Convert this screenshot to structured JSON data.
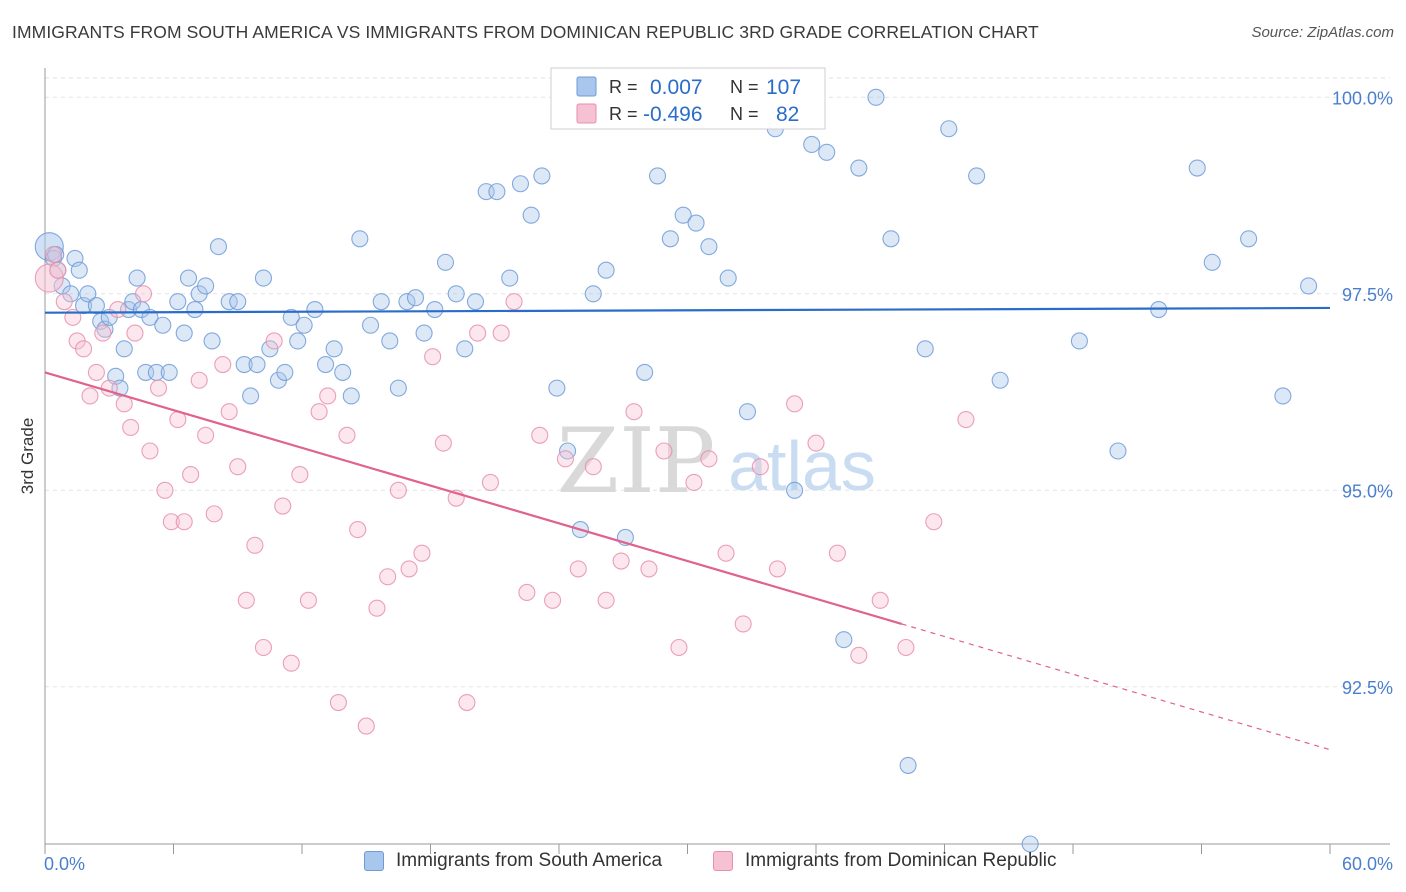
{
  "header": {
    "title": "IMMIGRANTS FROM SOUTH AMERICA VS IMMIGRANTS FROM DOMINICAN REPUBLIC 3RD GRADE CORRELATION CHART",
    "source": "Source: ZipAtlas.com"
  },
  "watermark": {
    "zip": "ZIP",
    "atlas": "atlas"
  },
  "legend_stats": {
    "row1": {
      "r_label": "R =",
      "r_value": "0.007",
      "n_label": "N =",
      "n_value": "107"
    },
    "row2": {
      "r_label": "R =",
      "r_value": "-0.496",
      "n_label": "N =",
      "n_value": "82"
    }
  },
  "legend_bottom": {
    "item1": "Immigrants from South America",
    "item2": "Immigrants from Dominican Republic"
  },
  "colors": {
    "blue_fill": "#a9c6ec",
    "blue_stroke": "#6f9bd8",
    "blue_line": "#2a6dc8",
    "pink_fill": "#f6c2d3",
    "pink_stroke": "#e88fac",
    "pink_line": "#e0628e",
    "axis_label": "#4a7fcf",
    "grid": "#e2e2e2"
  },
  "chart_data": {
    "type": "scatter",
    "title": "IMMIGRANTS FROM SOUTH AMERICA VS IMMIGRANTS FROM DOMINICAN REPUBLIC 3RD GRADE CORRELATION CHART",
    "xlabel": "",
    "ylabel": "3rd Grade",
    "xlim": [
      0,
      60
    ],
    "ylim": [
      90.5,
      100.5
    ],
    "x_tick_labels": [
      "0.0%",
      "60.0%"
    ],
    "y_ticks": [
      92.5,
      95.0,
      97.5,
      100.0
    ],
    "y_tick_labels": [
      "92.5%",
      "95.0%",
      "97.5%",
      "100.0%"
    ],
    "grid": true,
    "legend_position": "top-center",
    "series": [
      {
        "name": "Immigrants from South America",
        "color": "#6f9bd8",
        "R": 0.007,
        "N": 107,
        "trend": {
          "x": [
            0,
            60
          ],
          "y": [
            97.26,
            97.32
          ]
        },
        "points": [
          [
            0.2,
            98.1
          ],
          [
            0.4,
            97.95
          ],
          [
            0.6,
            97.8
          ],
          [
            0.8,
            97.6
          ],
          [
            1.2,
            97.5
          ],
          [
            0.5,
            98.0
          ],
          [
            1.4,
            97.95
          ],
          [
            1.6,
            97.8
          ],
          [
            1.8,
            97.35
          ],
          [
            2.0,
            97.5
          ],
          [
            2.4,
            97.35
          ],
          [
            2.6,
            97.15
          ],
          [
            2.8,
            97.05
          ],
          [
            3.0,
            97.2
          ],
          [
            3.3,
            96.45
          ],
          [
            3.5,
            96.3
          ],
          [
            3.7,
            96.8
          ],
          [
            3.9,
            97.3
          ],
          [
            4.1,
            97.4
          ],
          [
            4.3,
            97.7
          ],
          [
            4.5,
            97.3
          ],
          [
            4.7,
            96.5
          ],
          [
            4.9,
            97.2
          ],
          [
            5.2,
            96.5
          ],
          [
            5.5,
            97.1
          ],
          [
            5.8,
            96.5
          ],
          [
            6.2,
            97.4
          ],
          [
            6.5,
            97.0
          ],
          [
            6.7,
            97.7
          ],
          [
            7.0,
            97.3
          ],
          [
            7.2,
            97.5
          ],
          [
            7.5,
            97.6
          ],
          [
            7.8,
            96.9
          ],
          [
            8.1,
            98.1
          ],
          [
            8.6,
            97.4
          ],
          [
            9.0,
            97.4
          ],
          [
            9.3,
            96.6
          ],
          [
            9.6,
            96.2
          ],
          [
            9.9,
            96.6
          ],
          [
            10.2,
            97.7
          ],
          [
            10.5,
            96.8
          ],
          [
            10.9,
            96.4
          ],
          [
            11.2,
            96.5
          ],
          [
            11.5,
            97.2
          ],
          [
            11.8,
            96.9
          ],
          [
            12.1,
            97.1
          ],
          [
            12.6,
            97.3
          ],
          [
            13.1,
            96.6
          ],
          [
            13.5,
            96.8
          ],
          [
            13.9,
            96.5
          ],
          [
            14.3,
            96.2
          ],
          [
            14.7,
            98.2
          ],
          [
            15.2,
            97.1
          ],
          [
            15.7,
            97.4
          ],
          [
            16.1,
            96.9
          ],
          [
            16.5,
            96.3
          ],
          [
            16.9,
            97.4
          ],
          [
            17.3,
            97.45
          ],
          [
            17.7,
            97.0
          ],
          [
            18.2,
            97.3
          ],
          [
            18.7,
            97.9
          ],
          [
            19.2,
            97.5
          ],
          [
            19.6,
            96.8
          ],
          [
            20.1,
            97.4
          ],
          [
            20.6,
            98.8
          ],
          [
            21.1,
            98.8
          ],
          [
            21.7,
            97.7
          ],
          [
            22.2,
            98.9
          ],
          [
            22.7,
            98.5
          ],
          [
            23.2,
            99.0
          ],
          [
            23.9,
            96.3
          ],
          [
            24.4,
            95.5
          ],
          [
            25.0,
            94.5
          ],
          [
            25.6,
            97.5
          ],
          [
            26.2,
            97.8
          ],
          [
            27.1,
            94.4
          ],
          [
            28.0,
            96.5
          ],
          [
            28.6,
            99.0
          ],
          [
            29.2,
            98.2
          ],
          [
            29.8,
            98.5
          ],
          [
            30.4,
            98.4
          ],
          [
            31.0,
            98.1
          ],
          [
            31.9,
            97.7
          ],
          [
            32.8,
            96.0
          ],
          [
            33.5,
            99.8
          ],
          [
            34.1,
            99.6
          ],
          [
            35.0,
            95.0
          ],
          [
            35.8,
            99.4
          ],
          [
            36.5,
            99.3
          ],
          [
            37.3,
            93.1
          ],
          [
            38.0,
            99.1
          ],
          [
            38.8,
            100.0
          ],
          [
            39.5,
            98.2
          ],
          [
            40.3,
            91.5
          ],
          [
            41.1,
            96.8
          ],
          [
            42.2,
            99.6
          ],
          [
            43.5,
            99.0
          ],
          [
            44.6,
            96.4
          ],
          [
            46.0,
            90.5
          ],
          [
            48.3,
            96.9
          ],
          [
            50.1,
            95.5
          ],
          [
            52.0,
            97.3
          ],
          [
            53.8,
            99.1
          ],
          [
            54.5,
            97.9
          ],
          [
            56.2,
            98.2
          ],
          [
            57.8,
            96.2
          ],
          [
            59.0,
            97.6
          ]
        ]
      },
      {
        "name": "Immigrants from Dominican Republic",
        "color": "#e88fac",
        "R": -0.496,
        "N": 82,
        "trend": {
          "x": [
            0,
            40
          ],
          "y": [
            96.5,
            93.3
          ]
        },
        "trend_dashed": {
          "x": [
            40,
            60
          ],
          "y": [
            93.3,
            91.7
          ]
        },
        "points": [
          [
            0.2,
            97.7
          ],
          [
            0.4,
            98.0
          ],
          [
            0.6,
            97.8
          ],
          [
            0.9,
            97.4
          ],
          [
            1.3,
            97.2
          ],
          [
            1.5,
            96.9
          ],
          [
            1.8,
            96.8
          ],
          [
            2.1,
            96.2
          ],
          [
            2.4,
            96.5
          ],
          [
            2.7,
            97.0
          ],
          [
            3.0,
            96.3
          ],
          [
            3.4,
            97.3
          ],
          [
            3.7,
            96.1
          ],
          [
            4.0,
            95.8
          ],
          [
            4.2,
            97.0
          ],
          [
            4.6,
            97.5
          ],
          [
            4.9,
            95.5
          ],
          [
            5.3,
            96.3
          ],
          [
            5.6,
            95.0
          ],
          [
            5.9,
            94.6
          ],
          [
            6.2,
            95.9
          ],
          [
            6.5,
            94.6
          ],
          [
            6.8,
            95.2
          ],
          [
            7.2,
            96.4
          ],
          [
            7.5,
            95.7
          ],
          [
            7.9,
            94.7
          ],
          [
            8.3,
            96.6
          ],
          [
            8.6,
            96.0
          ],
          [
            9.0,
            95.3
          ],
          [
            9.4,
            93.6
          ],
          [
            9.8,
            94.3
          ],
          [
            10.2,
            93.0
          ],
          [
            10.7,
            96.9
          ],
          [
            11.1,
            94.8
          ],
          [
            11.5,
            92.8
          ],
          [
            11.9,
            95.2
          ],
          [
            12.3,
            93.6
          ],
          [
            12.8,
            96.0
          ],
          [
            13.2,
            96.2
          ],
          [
            13.7,
            92.3
          ],
          [
            14.1,
            95.7
          ],
          [
            14.6,
            94.5
          ],
          [
            15.0,
            92.0
          ],
          [
            15.5,
            93.5
          ],
          [
            16.0,
            93.9
          ],
          [
            16.5,
            95.0
          ],
          [
            17.0,
            94.0
          ],
          [
            17.6,
            94.2
          ],
          [
            18.1,
            96.7
          ],
          [
            18.6,
            95.6
          ],
          [
            19.2,
            94.9
          ],
          [
            19.7,
            92.3
          ],
          [
            20.2,
            97.0
          ],
          [
            20.8,
            95.1
          ],
          [
            21.3,
            97.0
          ],
          [
            21.9,
            97.4
          ],
          [
            22.5,
            93.7
          ],
          [
            23.1,
            95.7
          ],
          [
            23.7,
            93.6
          ],
          [
            24.3,
            95.4
          ],
          [
            24.9,
            94.0
          ],
          [
            25.6,
            95.3
          ],
          [
            26.2,
            93.6
          ],
          [
            26.9,
            94.1
          ],
          [
            27.5,
            96.0
          ],
          [
            28.2,
            94.0
          ],
          [
            28.9,
            95.5
          ],
          [
            29.6,
            93.0
          ],
          [
            30.3,
            95.1
          ],
          [
            31.0,
            95.4
          ],
          [
            31.8,
            94.2
          ],
          [
            32.6,
            93.3
          ],
          [
            33.4,
            95.3
          ],
          [
            34.2,
            94.0
          ],
          [
            35.0,
            96.1
          ],
          [
            36.0,
            95.6
          ],
          [
            37.0,
            94.2
          ],
          [
            38.0,
            92.9
          ],
          [
            39.0,
            93.6
          ],
          [
            40.2,
            93.0
          ],
          [
            41.5,
            94.6
          ],
          [
            43.0,
            95.9
          ]
        ]
      }
    ]
  }
}
